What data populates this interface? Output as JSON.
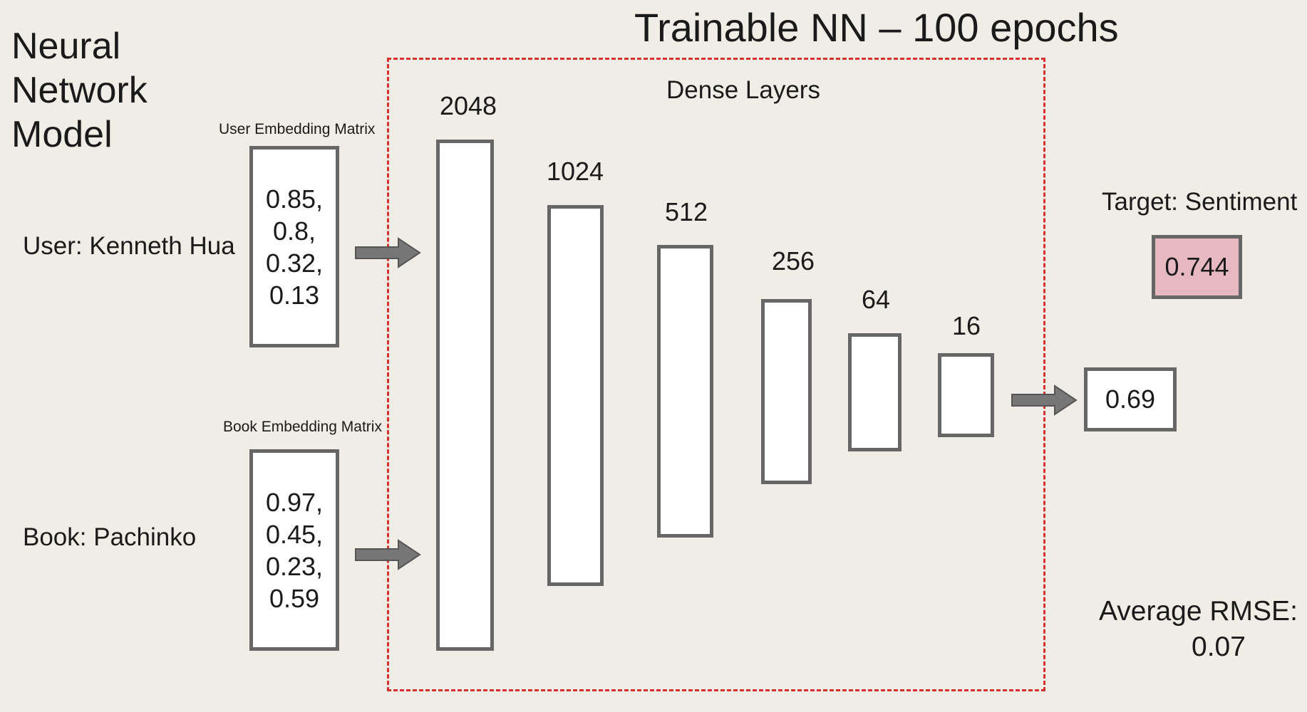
{
  "title": "Trainable NN – 100 epochs",
  "model_title": [
    "Neural",
    "Network",
    "Model"
  ],
  "dense_layers_title": "Dense Layers",
  "user": {
    "label": "User: Kenneth Hua",
    "matrix_label": "User Embedding Matrix",
    "values": [
      "0.85,",
      "0.8,",
      "0.32,",
      "0.13"
    ]
  },
  "book": {
    "label": "Book: Pachinko",
    "matrix_label": "Book Embedding Matrix",
    "values": [
      "0.97,",
      "0.45,",
      "0.23,",
      "0.59"
    ]
  },
  "layers": [
    {
      "units": "2048"
    },
    {
      "units": "1024"
    },
    {
      "units": "512"
    },
    {
      "units": "256"
    },
    {
      "units": "64"
    },
    {
      "units": "16"
    }
  ],
  "output": {
    "value": "0.69"
  },
  "target": {
    "label": "Target: Sentiment",
    "value": "0.744"
  },
  "rmse": {
    "label": "Average RMSE:",
    "value": "0.07"
  },
  "colors": {
    "background": "#efede6",
    "dashed_border": "#d9302f",
    "box_border": "#666666",
    "target_fill": "#e6b9c1",
    "arrow": "#777777"
  }
}
